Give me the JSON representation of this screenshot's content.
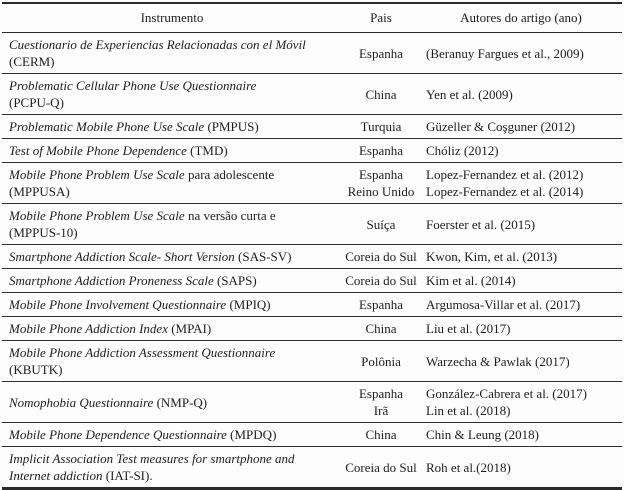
{
  "colors": {
    "text": "#1d1d1d",
    "rule": "#2a2a2a",
    "background": "#fdfdfd"
  },
  "table": {
    "columns": [
      {
        "label": "Instrumento"
      },
      {
        "label": "Pais"
      },
      {
        "label": "Autores do artigo (ano)"
      }
    ],
    "rows": [
      {
        "instrument": [
          [
            {
              "text": "Cuestionario de Experiencias Relacionadas con el Móvil",
              "italic": true
            }
          ],
          [
            {
              "text": "(CERM)",
              "italic": false
            }
          ]
        ],
        "country": [
          "Espanha"
        ],
        "authors": [
          "(Beranuy Fargues et al., 2009)"
        ]
      },
      {
        "instrument": [
          [
            {
              "text": "Problematic Cellular Phone Use Questionnaire",
              "italic": true
            }
          ],
          [
            {
              "text": "(PCPU-Q)",
              "italic": false
            }
          ]
        ],
        "country": [
          "China"
        ],
        "authors": [
          "Yen et al. (2009)"
        ]
      },
      {
        "instrument": [
          [
            {
              "text": "Problematic Mobile Phone Use Scale",
              "italic": true
            },
            {
              "text": " (PMPUS)",
              "italic": false
            }
          ]
        ],
        "country": [
          "Turquia"
        ],
        "authors": [
          "Güzeller & Coşguner (2012)"
        ]
      },
      {
        "instrument": [
          [
            {
              "text": "Test of Mobile Phone Dependence",
              "italic": true
            },
            {
              "text": " (TMD)",
              "italic": false
            }
          ]
        ],
        "country": [
          "Espanha"
        ],
        "authors": [
          "Chóliz (2012)"
        ]
      },
      {
        "instrument": [
          [
            {
              "text": "Mobile Phone Problem Use Scale",
              "italic": true
            },
            {
              "text": " para adolescente",
              "italic": false
            }
          ],
          [
            {
              "text": "(MPPUSA)",
              "italic": false
            }
          ]
        ],
        "country": [
          "Espanha",
          "Reino Unido"
        ],
        "authors": [
          "Lopez-Fernandez et al. (2012)",
          "Lopez-Fernandez et al. (2014)"
        ]
      },
      {
        "instrument": [
          [
            {
              "text": "Mobile Phone Problem Use Scale",
              "italic": true
            },
            {
              "text": " na versão curta e",
              "italic": false
            }
          ],
          [
            {
              "text": "(MPPUS-10)",
              "italic": false
            }
          ]
        ],
        "country": [
          "Suíça"
        ],
        "authors": [
          "Foerster et al. (2015)"
        ]
      },
      {
        "instrument": [
          [
            {
              "text": "Smartphone Addiction Scale- Short Version",
              "italic": true
            },
            {
              "text": " (SAS-SV)",
              "italic": false
            }
          ]
        ],
        "country": [
          "Coreia do Sul"
        ],
        "authors": [
          "Kwon, Kim, et al. (2013)"
        ]
      },
      {
        "instrument": [
          [
            {
              "text": "Smartphone Addiction Proneness Scale",
              "italic": true
            },
            {
              "text": " (SAPS)",
              "italic": false
            }
          ]
        ],
        "country": [
          "Coreia do Sul"
        ],
        "authors": [
          "Kim et al. (2014)"
        ]
      },
      {
        "instrument": [
          [
            {
              "text": "Mobile Phone Involvement Questionnaire",
              "italic": true
            },
            {
              "text": " (MPIQ)",
              "italic": false
            }
          ]
        ],
        "country": [
          "Espanha"
        ],
        "authors": [
          "Argumosa-Villar et al. (2017)"
        ]
      },
      {
        "instrument": [
          [
            {
              "text": "Mobile Phone Addiction Index",
              "italic": true
            },
            {
              "text": " (MPAI)",
              "italic": false
            }
          ]
        ],
        "country": [
          "China"
        ],
        "authors": [
          "Liu et al. (2017)"
        ]
      },
      {
        "instrument": [
          [
            {
              "text": "Mobile Phone Addiction Assessment Questionnaire",
              "italic": true
            }
          ],
          [
            {
              "text": "(KBUTK)",
              "italic": false
            }
          ]
        ],
        "country": [
          "Polônia"
        ],
        "authors": [
          "Warzecha & Pawlak (2017)"
        ]
      },
      {
        "instrument": [
          [
            {
              "text": "Nomophobia Questionnaire",
              "italic": true
            },
            {
              "text": " (NMP-Q)",
              "italic": false
            }
          ]
        ],
        "country": [
          "Espanha",
          "Irã"
        ],
        "authors": [
          "González-Cabrera et al. (2017)",
          "Lin et al. (2018)"
        ]
      },
      {
        "instrument": [
          [
            {
              "text": "Mobile Phone Dependence Questionnaire",
              "italic": true
            },
            {
              "text": " (MPDQ)",
              "italic": false
            }
          ]
        ],
        "country": [
          "China"
        ],
        "authors": [
          "Chin & Leung (2018)"
        ]
      },
      {
        "instrument": [
          [
            {
              "text": "Implicit Association Test measures for smartphone and",
              "italic": true
            }
          ],
          [
            {
              "text": "Internet addiction",
              "italic": true
            },
            {
              "text": " (IAT-SI).",
              "italic": false
            }
          ]
        ],
        "country": [
          "Coreia do Sul"
        ],
        "authors": [
          "Roh et al.(2018)"
        ]
      }
    ]
  }
}
